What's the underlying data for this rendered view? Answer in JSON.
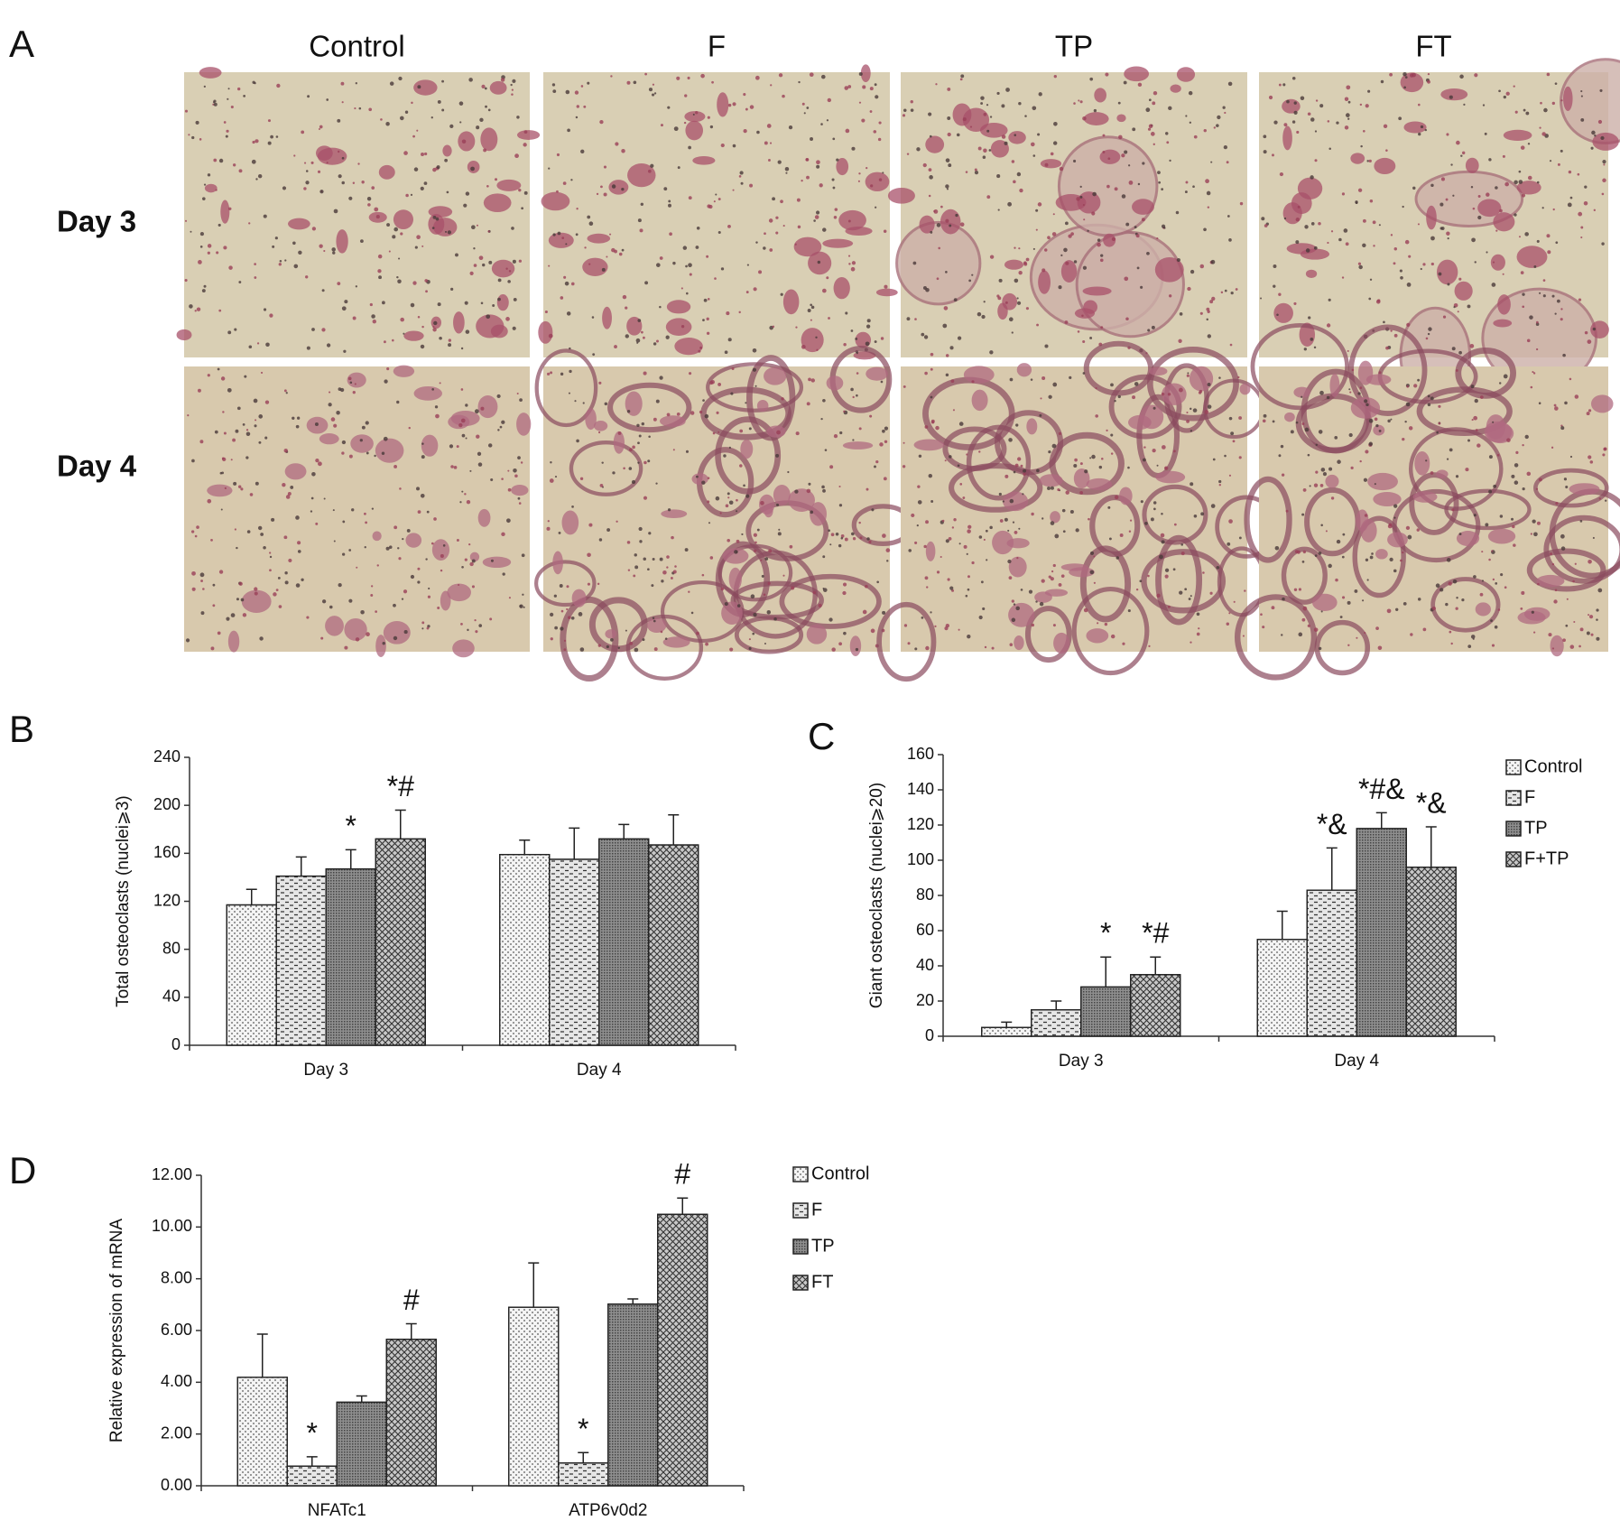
{
  "panel_a": {
    "label": "A",
    "columns": [
      "Control",
      "F",
      "TP",
      "FT"
    ],
    "rows": [
      "Day 3",
      "Day 4"
    ]
  },
  "chart_data": [
    {
      "type": "bar",
      "panel_label": "B",
      "y_label": "Total osteoclasts (nuclei⩾3)",
      "categories": [
        "Day 3",
        "Day 4"
      ],
      "series": [
        {
          "color": "#f4f4f4",
          "pattern": "dots",
          "values": [
            117,
            159
          ],
          "errors": [
            13,
            12
          ],
          "annotations": [
            null,
            null
          ]
        },
        {
          "color": "#e6e6e6",
          "pattern": "dashes",
          "values": [
            141,
            155
          ],
          "errors": [
            16,
            26
          ],
          "annotations": [
            null,
            null
          ]
        },
        {
          "color": "#8f8f8f",
          "pattern": "dense",
          "values": [
            147,
            172
          ],
          "errors": [
            16,
            12
          ],
          "annotations": [
            "*",
            null
          ]
        },
        {
          "color": "#c8c8c8",
          "pattern": "crosshatch",
          "values": [
            172,
            167
          ],
          "errors": [
            24,
            25
          ],
          "annotations": [
            "*#",
            null
          ]
        }
      ],
      "ylim": [
        0,
        240
      ],
      "yticks": [
        0,
        40,
        80,
        120,
        160,
        200,
        240
      ]
    },
    {
      "type": "bar",
      "panel_label": "C",
      "y_label": "Giant osteoclasts (nuclei⩾20)",
      "categories": [
        "Day 3",
        "Day 4"
      ],
      "series": [
        {
          "name": "Control",
          "color": "#f4f4f4",
          "pattern": "dots",
          "values": [
            5,
            55
          ],
          "errors": [
            3,
            16
          ],
          "annotations": [
            null,
            null
          ]
        },
        {
          "name": "F",
          "color": "#e6e6e6",
          "pattern": "dashes",
          "values": [
            15,
            83
          ],
          "errors": [
            5,
            24
          ],
          "annotations": [
            null,
            "*&"
          ]
        },
        {
          "name": "TP",
          "color": "#8f8f8f",
          "pattern": "dense",
          "values": [
            28,
            118
          ],
          "errors": [
            17,
            9
          ],
          "annotations": [
            "*",
            "*#&"
          ]
        },
        {
          "name": "F+TP",
          "color": "#c8c8c8",
          "pattern": "crosshatch",
          "values": [
            35,
            96
          ],
          "errors": [
            10,
            23
          ],
          "annotations": [
            "*#",
            "*&"
          ]
        }
      ],
      "ylim": [
        0,
        160
      ],
      "yticks": [
        0,
        20,
        40,
        60,
        80,
        100,
        120,
        140,
        160
      ],
      "legend": "right"
    },
    {
      "type": "bar",
      "panel_label": "D",
      "y_label": "Relative expression of mRNA",
      "categories": [
        "NFATc1",
        "ATP6v0d2"
      ],
      "series": [
        {
          "name": "Control",
          "color": "#f4f4f4",
          "pattern": "dots",
          "values": [
            4.19,
            6.9
          ],
          "errors": [
            1.67,
            1.71
          ],
          "annotations": [
            null,
            null
          ]
        },
        {
          "name": "F",
          "color": "#e6e6e6",
          "pattern": "dashes",
          "values": [
            0.76,
            0.88
          ],
          "errors": [
            0.36,
            0.4
          ],
          "annotations": [
            "*",
            "*"
          ]
        },
        {
          "name": "TP",
          "color": "#8f8f8f",
          "pattern": "dense",
          "values": [
            3.23,
            7.02
          ],
          "errors": [
            0.24,
            0.2
          ],
          "annotations": [
            null,
            null
          ]
        },
        {
          "name": "FT",
          "color": "#c8c8c8",
          "pattern": "crosshatch",
          "values": [
            5.66,
            10.49
          ],
          "errors": [
            0.6,
            0.63
          ],
          "annotations": [
            "#",
            "#"
          ]
        }
      ],
      "ylim": [
        0,
        12
      ],
      "yticks": [
        {
          "value": 0,
          "label": "0.00"
        },
        {
          "value": 2,
          "label": "2.00"
        },
        {
          "value": 4,
          "label": "4.00"
        },
        {
          "value": 6,
          "label": "6.00"
        },
        {
          "value": 8,
          "label": "8.00"
        },
        {
          "value": 10,
          "label": "10.00"
        },
        {
          "value": 12,
          "label": "12.00"
        }
      ],
      "legend": "right"
    }
  ]
}
